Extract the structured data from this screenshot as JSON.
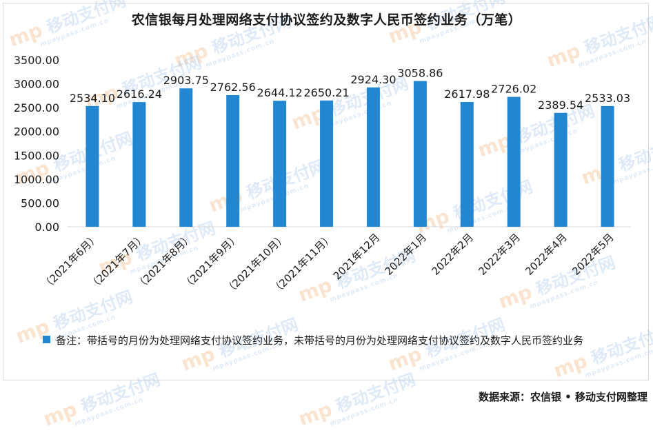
{
  "chart_data": {
    "type": "bar",
    "title": "农信银每月处理网络支付协议签约及数字人民币签约业务（万笔）",
    "categories": [
      "（2021年6月）",
      "（2021年7月）",
      "（2021年8月）",
      "（2021年9月）",
      "（2021年10月）",
      "（2021年11月）",
      "2021年12月",
      "2022年1月",
      "2022年2月",
      "2022年3月",
      "2022年4月",
      "2022年5月"
    ],
    "series": [
      {
        "values": [
          2534.1,
          2616.24,
          2903.75,
          2762.56,
          2644.12,
          2650.21,
          2924.3,
          3058.86,
          2617.98,
          2726.02,
          2389.54,
          2533.03
        ],
        "labels": [
          "2534.10",
          "2616.24",
          "2903.75",
          "2762.56",
          "2644.12",
          "2650.21",
          "2924.30",
          "3058.86",
          "2617.98",
          "2726.02",
          "2389.54",
          "2533.03"
        ]
      }
    ],
    "ylim": [
      0,
      3500
    ],
    "yticks": [
      "0.00",
      "500.00",
      "1000.00",
      "1500.00",
      "2000.00",
      "2500.00",
      "3000.00",
      "3500.00"
    ],
    "xlabel": "",
    "ylabel": "",
    "grid": false,
    "bar_color": "#2287d0",
    "legend_position": "bottom",
    "legend_text": "备注：带括号的月份为处理网络支付协议签约业务，未带括号的月份为处理网络支付协议签约及数字人民币签约业务"
  },
  "source": "数据来源：农信银 • 移动支付网整理",
  "watermark": {
    "logo": "mp",
    "text": "移动支付网",
    "url": "mpaypass.com.cn"
  }
}
